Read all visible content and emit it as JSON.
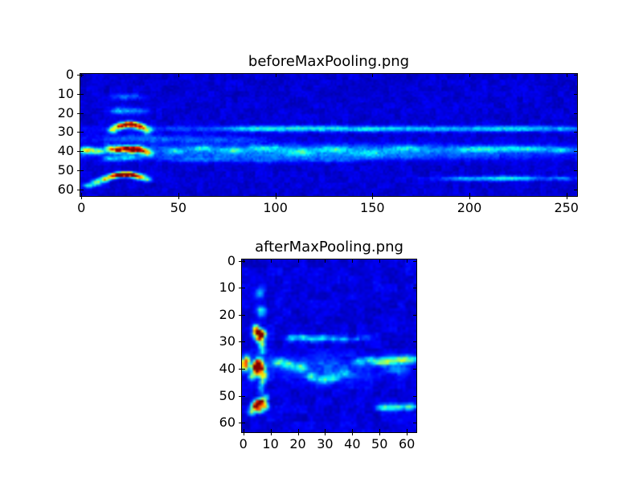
{
  "figure": {
    "background": "#ffffff",
    "spine_color": "#000000",
    "label_color": "#000000",
    "colormap_min_color": "#000080",
    "colormap_max_color": "#800000"
  },
  "chart_data": [
    {
      "id": "before",
      "type": "heatmap",
      "title": "beforeMaxPooling.png",
      "colormap": "jet",
      "grid_cols": 256,
      "grid_rows": 64,
      "xlim": [
        -0.5,
        255.5
      ],
      "ylim": [
        63.5,
        -0.5
      ],
      "xticks": [
        0,
        50,
        100,
        150,
        200,
        250
      ],
      "yticks": [
        0,
        10,
        20,
        30,
        40,
        50,
        60
      ],
      "grid_on": false,
      "legend": "none",
      "background_level": 0.04,
      "noise_amp": 0.09,
      "seed": 11,
      "features": [
        [
          24,
          11.5,
          8,
          1.6,
          0.16
        ],
        [
          25,
          19,
          9,
          1.8,
          0.22
        ],
        [
          18,
          18.5,
          3,
          1.5,
          0.12
        ],
        [
          16,
          29,
          2.2,
          1.7,
          0.45
        ],
        [
          19,
          27.2,
          2.2,
          1.5,
          0.7
        ],
        [
          22,
          26.2,
          2.2,
          1.4,
          0.85
        ],
        [
          25,
          25.8,
          2.0,
          1.4,
          1.0
        ],
        [
          28,
          26.3,
          2.0,
          1.4,
          0.9
        ],
        [
          31,
          27.2,
          2.2,
          1.5,
          0.65
        ],
        [
          34,
          29,
          2.4,
          1.8,
          0.45
        ],
        [
          150,
          28.3,
          108,
          1.5,
          0.24
        ],
        [
          92,
          28.2,
          16,
          1.3,
          0.14
        ],
        [
          120,
          27.8,
          12,
          1.2,
          0.12
        ],
        [
          150,
          28.5,
          10,
          1.2,
          0.1
        ],
        [
          222,
          28.2,
          20,
          1.4,
          0.13
        ],
        [
          250,
          28.4,
          6,
          1.2,
          0.12
        ],
        [
          30,
          33.5,
          25,
          2,
          0.14
        ],
        [
          70,
          34,
          25,
          2,
          0.1
        ],
        [
          128,
          39.5,
          120,
          3.2,
          0.19
        ],
        [
          128,
          43,
          110,
          1.8,
          0.1
        ],
        [
          3,
          39.5,
          4,
          1.7,
          0.5
        ],
        [
          9,
          40,
          3,
          1.4,
          0.35
        ],
        [
          15,
          38.8,
          2.3,
          1.7,
          0.55
        ],
        [
          19,
          39.2,
          2.2,
          1.6,
          0.95
        ],
        [
          23,
          38.6,
          2.2,
          1.5,
          0.8
        ],
        [
          26,
          39.3,
          2.2,
          1.6,
          1.0
        ],
        [
          29,
          38.8,
          2.0,
          1.5,
          0.9
        ],
        [
          32,
          39.8,
          2.3,
          1.7,
          0.6
        ],
        [
          35,
          41,
          2.3,
          1.6,
          0.4
        ],
        [
          24,
          43.5,
          6,
          1.5,
          0.22
        ],
        [
          15,
          44,
          4,
          1.3,
          0.18
        ],
        [
          48,
          40,
          5,
          1.5,
          0.18
        ],
        [
          62,
          38.5,
          6,
          1.4,
          0.2
        ],
        [
          78,
          39.5,
          6,
          1.4,
          0.18
        ],
        [
          95,
          38.5,
          7,
          1.4,
          0.2
        ],
        [
          112,
          40.5,
          7,
          1.4,
          0.18
        ],
        [
          130,
          39,
          7,
          1.4,
          0.16
        ],
        [
          148,
          41,
          7,
          1.4,
          0.15
        ],
        [
          168,
          38.5,
          8,
          1.4,
          0.15
        ],
        [
          205,
          39,
          12,
          1.6,
          0.22
        ],
        [
          228,
          38.8,
          12,
          1.5,
          0.24
        ],
        [
          248,
          39.5,
          7,
          1.4,
          0.2
        ],
        [
          60,
          44.5,
          18,
          1.3,
          0.12
        ],
        [
          95,
          45,
          15,
          1.2,
          0.1
        ],
        [
          130,
          44.8,
          15,
          1.2,
          0.09
        ],
        [
          8,
          56.2,
          2.6,
          1.5,
          0.4
        ],
        [
          12,
          54.6,
          2.4,
          1.4,
          0.6
        ],
        [
          16,
          53.2,
          2.4,
          1.3,
          0.8
        ],
        [
          19,
          52.4,
          2.2,
          1.2,
          0.95
        ],
        [
          22,
          52.1,
          2.2,
          1.2,
          1.0
        ],
        [
          25,
          52.2,
          2.2,
          1.2,
          0.95
        ],
        [
          28,
          52.8,
          2.3,
          1.3,
          0.75
        ],
        [
          31,
          53.6,
          2.4,
          1.4,
          0.55
        ],
        [
          34,
          54.8,
          2.2,
          1.3,
          0.38
        ],
        [
          4,
          58,
          3,
          1.2,
          0.3
        ],
        [
          215,
          54.3,
          28,
          1.2,
          0.22
        ],
        [
          222,
          54.2,
          10,
          1.1,
          0.12
        ],
        [
          196,
          54.5,
          7,
          1,
          0.12
        ],
        [
          248,
          54.3,
          6,
          1.1,
          0.14
        ]
      ]
    },
    {
      "id": "after",
      "type": "heatmap",
      "title": "afterMaxPooling.png",
      "colormap": "jet",
      "grid_cols": 64,
      "grid_rows": 64,
      "xlim": [
        -0.5,
        63.5
      ],
      "ylim": [
        63.5,
        -0.5
      ],
      "xticks": [
        0,
        10,
        20,
        30,
        40,
        50,
        60
      ],
      "yticks": [
        0,
        10,
        20,
        30,
        40,
        50,
        60
      ],
      "grid_on": false,
      "legend": "none",
      "background_level": 0.04,
      "noise_amp": 0.11,
      "seed": 77,
      "features": [
        [
          6,
          12,
          1.6,
          2,
          0.22
        ],
        [
          6.5,
          18.5,
          1.6,
          1.8,
          0.3
        ],
        [
          5,
          26.2,
          1.5,
          1.4,
          0.85
        ],
        [
          6.8,
          27,
          1.3,
          1.3,
          1.0
        ],
        [
          5.8,
          28.8,
          1.6,
          1.4,
          0.6
        ],
        [
          6.8,
          31,
          1.2,
          1.5,
          0.4
        ],
        [
          4.5,
          24.5,
          1.2,
          1,
          0.45
        ],
        [
          7,
          33.5,
          1.1,
          1.5,
          0.28
        ],
        [
          18,
          28.6,
          2.2,
          1.2,
          0.3
        ],
        [
          22,
          28.4,
          1.8,
          1.1,
          0.34
        ],
        [
          25.5,
          29,
          1.6,
          1.1,
          0.3
        ],
        [
          29,
          28.6,
          1.8,
          1.1,
          0.32
        ],
        [
          33,
          28.8,
          2,
          1.1,
          0.26
        ],
        [
          37,
          29.2,
          1.8,
          1,
          0.22
        ],
        [
          41,
          29,
          1.6,
          1,
          0.18
        ],
        [
          45.5,
          28.4,
          1.5,
          1,
          0.14
        ],
        [
          0.5,
          38.5,
          1.6,
          2.2,
          0.6
        ],
        [
          1.5,
          36.5,
          1.2,
          1.4,
          0.4
        ],
        [
          4.3,
          39.3,
          1.3,
          1.4,
          1.0
        ],
        [
          6.5,
          39.5,
          1.4,
          1.4,
          1.0
        ],
        [
          5.5,
          37.2,
          1.4,
          1.3,
          0.8
        ],
        [
          5,
          41.5,
          1.6,
          1.5,
          0.65
        ],
        [
          7.5,
          42.5,
          1.3,
          1.4,
          0.45
        ],
        [
          7,
          44.8,
          1.2,
          1.3,
          0.32
        ],
        [
          3,
          43,
          1.2,
          1.2,
          0.35
        ],
        [
          28,
          40,
          20,
          4.5,
          0.12
        ],
        [
          13,
          37.5,
          2.5,
          1.5,
          0.3
        ],
        [
          17,
          38.5,
          2,
          1.4,
          0.26
        ],
        [
          21,
          39.5,
          2,
          1.4,
          0.26
        ],
        [
          25,
          43,
          2,
          1.4,
          0.24
        ],
        [
          29,
          44,
          2.2,
          1.4,
          0.26
        ],
        [
          33,
          43.5,
          2,
          1.4,
          0.26
        ],
        [
          37,
          42,
          2,
          1.3,
          0.2
        ],
        [
          42,
          37.5,
          2,
          1.3,
          0.2
        ],
        [
          46,
          36.5,
          2,
          1.3,
          0.22
        ],
        [
          55,
          37,
          5.5,
          1.5,
          0.4
        ],
        [
          60.5,
          36.5,
          3.5,
          1.3,
          0.35
        ],
        [
          50,
          37.5,
          3,
          1.2,
          0.28
        ],
        [
          57,
          40.5,
          4,
          1.5,
          0.15
        ],
        [
          6.5,
          47.5,
          1.2,
          1.8,
          0.22
        ],
        [
          4.2,
          54.2,
          1.5,
          1.4,
          0.6
        ],
        [
          5.2,
          52.8,
          1.3,
          1.2,
          1.0
        ],
        [
          6.8,
          52.2,
          1.4,
          1.3,
          0.85
        ],
        [
          6,
          55,
          1.6,
          1.3,
          0.55
        ],
        [
          8.3,
          53.8,
          1.2,
          1.2,
          0.45
        ],
        [
          3,
          56.2,
          1.3,
          1.2,
          0.35
        ],
        [
          8.5,
          50.5,
          1,
          1,
          0.3
        ],
        [
          56,
          54.2,
          5,
          1.2,
          0.35
        ],
        [
          51,
          54.4,
          2.5,
          1,
          0.25
        ],
        [
          61.5,
          54,
          2,
          1,
          0.3
        ]
      ]
    }
  ]
}
